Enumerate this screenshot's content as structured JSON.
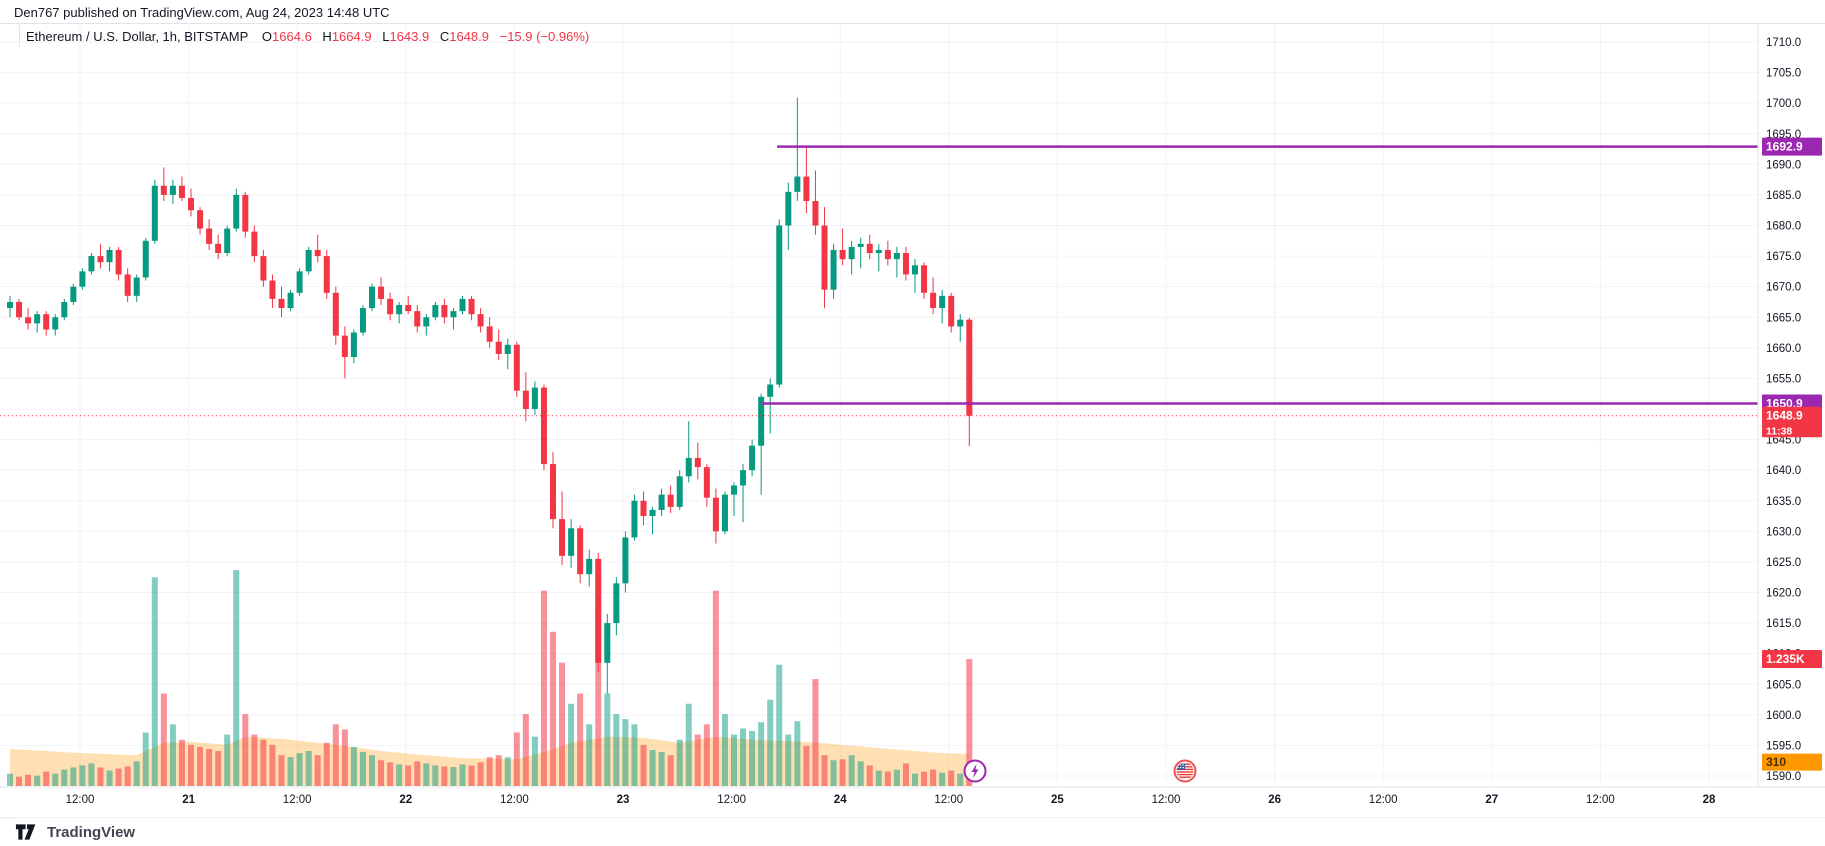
{
  "watermark": "Den767 published on TradingView.com, Aug 24, 2023 14:48 UTC",
  "legend": {
    "symbol": "Ethereum / U.S. Dollar, 1h, BITSTAMP",
    "o_label": "O",
    "o_value": "1664.6",
    "h_label": "H",
    "h_value": "1664.9",
    "l_label": "L",
    "l_value": "1643.9",
    "c_label": "C",
    "c_value": "1648.9",
    "change": "−15.9 (−0.96%)"
  },
  "footer": {
    "brand": "TradingView"
  },
  "colors": {
    "up": "#089981",
    "down": "#f23645",
    "vol_up": "rgba(8,153,129,0.5)",
    "vol_down": "rgba(242,54,69,0.55)",
    "ma_fill": "rgba(255,152,0,0.30)",
    "level": "#9c27b0",
    "last": "#f23645",
    "grid": "#f0f3fa",
    "border": "#e0e3eb",
    "axis_text": "#131722",
    "ma_badge_bg": "#ff9800",
    "ma_badge_text": "#4a3000"
  },
  "chart_data": {
    "type": "candlestick",
    "title": "Ethereum / U.S. Dollar, 1h, BITSTAMP",
    "price_axis": {
      "min": 1590,
      "max": 1710,
      "tick_step": 5
    },
    "price_ticks": [
      "1710.0",
      "1705.0",
      "1700.0",
      "1695.0",
      "1690.0",
      "1685.0",
      "1680.0",
      "1675.0",
      "1670.0",
      "1665.0",
      "1660.0",
      "1655.0",
      "1650.0",
      "1645.0",
      "1640.0",
      "1635.0",
      "1630.0",
      "1625.0",
      "1620.0",
      "1615.0",
      "1610.0",
      "1605.0",
      "1600.0",
      "1595.0",
      "1590.0"
    ],
    "time_ticks": [
      "12:00",
      "21",
      "12:00",
      "22",
      "12:00",
      "23",
      "12:00",
      "24",
      "12:00",
      "25",
      "12:00",
      "26",
      "12:00",
      "27",
      "12:00",
      "28"
    ],
    "levels": [
      {
        "label": "1692.9",
        "price": 1692.9,
        "color": "#9c27b0"
      },
      {
        "label": "1650.9",
        "price": 1650.9,
        "color": "#9c27b0"
      }
    ],
    "last_price": {
      "label": "1648.9",
      "price": 1648.9,
      "countdown": "11:38"
    },
    "volume_badge": {
      "label": "1.235K",
      "value": 1235
    },
    "ma_badge": {
      "label": "310",
      "value": 310
    },
    "markers": [
      {
        "type": "lightning",
        "name": "idea-event-marker"
      },
      {
        "type": "us-flag",
        "name": "economic-event-marker"
      }
    ],
    "volume_ma_points": [
      [
        0,
        360
      ],
      [
        8,
        320
      ],
      [
        14,
        300
      ],
      [
        17,
        420
      ],
      [
        20,
        430
      ],
      [
        24,
        400
      ],
      [
        26,
        480
      ],
      [
        30,
        460
      ],
      [
        36,
        400
      ],
      [
        42,
        330
      ],
      [
        50,
        270
      ],
      [
        56,
        260
      ],
      [
        59,
        330
      ],
      [
        62,
        420
      ],
      [
        66,
        480
      ],
      [
        70,
        470
      ],
      [
        74,
        420
      ],
      [
        78,
        480
      ],
      [
        82,
        450
      ],
      [
        85,
        440
      ],
      [
        88,
        430
      ],
      [
        92,
        400
      ],
      [
        96,
        370
      ],
      [
        100,
        340
      ],
      [
        103,
        320
      ],
      [
        106,
        310
      ]
    ],
    "candles": [
      [
        1666.5,
        1668.5,
        1665.0,
        1667.5,
        120
      ],
      [
        1667.5,
        1668.0,
        1664.5,
        1665.0,
        90
      ],
      [
        1665.0,
        1666.5,
        1663.0,
        1664.0,
        110
      ],
      [
        1664.0,
        1666.0,
        1662.5,
        1665.5,
        100
      ],
      [
        1665.5,
        1666.0,
        1662.0,
        1663.0,
        140
      ],
      [
        1663.0,
        1665.5,
        1662.0,
        1665.0,
        120
      ],
      [
        1665.0,
        1668.0,
        1664.5,
        1667.5,
        160
      ],
      [
        1667.5,
        1670.5,
        1667.0,
        1670.0,
        180
      ],
      [
        1670.0,
        1673.0,
        1669.5,
        1672.5,
        200
      ],
      [
        1672.5,
        1675.5,
        1672.0,
        1675.0,
        220
      ],
      [
        1675.0,
        1677.0,
        1673.0,
        1674.0,
        180
      ],
      [
        1674.0,
        1676.5,
        1672.5,
        1676.0,
        150
      ],
      [
        1676.0,
        1676.5,
        1671.0,
        1672.0,
        170
      ],
      [
        1672.0,
        1673.0,
        1667.5,
        1668.5,
        190
      ],
      [
        1668.5,
        1672.0,
        1667.5,
        1671.5,
        240
      ],
      [
        1671.5,
        1678.0,
        1671.0,
        1677.5,
        520
      ],
      [
        1677.5,
        1687.5,
        1677.0,
        1686.5,
        2030
      ],
      [
        1686.5,
        1689.5,
        1684.0,
        1685.0,
        900
      ],
      [
        1685.0,
        1687.5,
        1683.5,
        1686.5,
        600
      ],
      [
        1686.5,
        1688.0,
        1684.0,
        1684.5,
        450
      ],
      [
        1684.5,
        1686.0,
        1681.5,
        1682.5,
        400
      ],
      [
        1682.5,
        1683.0,
        1678.5,
        1679.5,
        380
      ],
      [
        1679.5,
        1681.0,
        1676.0,
        1677.0,
        360
      ],
      [
        1677.0,
        1678.5,
        1674.5,
        1675.5,
        340
      ],
      [
        1675.5,
        1680.0,
        1675.0,
        1679.5,
        500
      ],
      [
        1679.5,
        1686.0,
        1679.0,
        1685.0,
        2100
      ],
      [
        1685.0,
        1685.5,
        1678.0,
        1679.0,
        700
      ],
      [
        1679.0,
        1680.0,
        1674.0,
        1675.0,
        500
      ],
      [
        1675.0,
        1676.0,
        1670.0,
        1671.0,
        450
      ],
      [
        1671.0,
        1672.0,
        1666.5,
        1668.0,
        400
      ],
      [
        1668.0,
        1670.0,
        1665.0,
        1666.5,
        300
      ],
      [
        1666.5,
        1669.5,
        1666.0,
        1669.0,
        280
      ],
      [
        1669.0,
        1673.0,
        1668.5,
        1672.5,
        320
      ],
      [
        1672.5,
        1676.5,
        1672.0,
        1676.0,
        340
      ],
      [
        1676.0,
        1678.5,
        1674.0,
        1675.0,
        300
      ],
      [
        1675.0,
        1676.0,
        1668.0,
        1669.0,
        420
      ],
      [
        1669.0,
        1670.0,
        1660.5,
        1662.0,
        600
      ],
      [
        1662.0,
        1663.5,
        1655.0,
        1658.5,
        550
      ],
      [
        1658.5,
        1663.0,
        1657.5,
        1662.5,
        380
      ],
      [
        1662.5,
        1667.0,
        1662.0,
        1666.5,
        330
      ],
      [
        1666.5,
        1670.5,
        1666.0,
        1670.0,
        300
      ],
      [
        1670.0,
        1671.5,
        1667.0,
        1668.0,
        250
      ],
      [
        1668.0,
        1669.0,
        1664.5,
        1665.5,
        230
      ],
      [
        1665.5,
        1667.5,
        1664.0,
        1667.0,
        210
      ],
      [
        1667.0,
        1668.5,
        1665.5,
        1666.0,
        200
      ],
      [
        1666.0,
        1667.0,
        1662.5,
        1663.5,
        240
      ],
      [
        1663.5,
        1665.5,
        1662.0,
        1665.0,
        220
      ],
      [
        1665.0,
        1667.5,
        1664.5,
        1667.0,
        200
      ],
      [
        1667.0,
        1668.0,
        1664.0,
        1665.0,
        190
      ],
      [
        1665.0,
        1666.5,
        1663.0,
        1666.0,
        185
      ],
      [
        1666.0,
        1668.5,
        1665.5,
        1668.0,
        210
      ],
      [
        1668.0,
        1668.5,
        1664.5,
        1665.5,
        200
      ],
      [
        1665.5,
        1666.5,
        1662.5,
        1663.5,
        230
      ],
      [
        1663.5,
        1665.0,
        1660.0,
        1661.0,
        280
      ],
      [
        1661.0,
        1663.0,
        1658.0,
        1659.0,
        300
      ],
      [
        1659.0,
        1661.5,
        1656.5,
        1660.5,
        280
      ],
      [
        1660.5,
        1661.0,
        1652.0,
        1653.0,
        520
      ],
      [
        1653.0,
        1656.0,
        1648.0,
        1650.0,
        700
      ],
      [
        1650.0,
        1654.5,
        1649.0,
        1653.5,
        480
      ],
      [
        1653.5,
        1654.0,
        1640.0,
        1641.0,
        1900
      ],
      [
        1641.0,
        1643.0,
        1630.5,
        1632.0,
        1500
      ],
      [
        1632.0,
        1636.5,
        1624.5,
        1626.0,
        1200
      ],
      [
        1626.0,
        1632.0,
        1624.0,
        1630.5,
        800
      ],
      [
        1630.5,
        1631.0,
        1621.5,
        1623.0,
        900
      ],
      [
        1623.0,
        1627.0,
        1621.0,
        1625.5,
        600
      ],
      [
        1625.5,
        1626.5,
        1607.0,
        1608.5,
        1730
      ],
      [
        1608.5,
        1616.5,
        1603.5,
        1615.0,
        900
      ],
      [
        1615.0,
        1622.5,
        1613.0,
        1621.5,
        700
      ],
      [
        1621.5,
        1630.0,
        1620.0,
        1629.0,
        650
      ],
      [
        1629.0,
        1636.0,
        1628.5,
        1635.0,
        600
      ],
      [
        1635.0,
        1636.5,
        1631.0,
        1632.5,
        400
      ],
      [
        1632.5,
        1634.0,
        1629.5,
        1633.5,
        350
      ],
      [
        1633.5,
        1637.0,
        1632.5,
        1636.0,
        330
      ],
      [
        1636.0,
        1637.5,
        1633.0,
        1634.0,
        300
      ],
      [
        1634.0,
        1640.0,
        1633.5,
        1639.0,
        450
      ],
      [
        1639.0,
        1648.0,
        1638.0,
        1642.0,
        800
      ],
      [
        1642.0,
        1644.5,
        1638.5,
        1640.5,
        500
      ],
      [
        1640.5,
        1641.0,
        1634.0,
        1635.5,
        600
      ],
      [
        1635.5,
        1637.0,
        1628.0,
        1630.0,
        1900
      ],
      [
        1630.0,
        1636.5,
        1629.5,
        1636.0,
        700
      ],
      [
        1636.0,
        1638.0,
        1632.5,
        1637.5,
        500
      ],
      [
        1637.5,
        1641.0,
        1631.5,
        1640.0,
        560
      ],
      [
        1640.0,
        1645.0,
        1639.0,
        1644.0,
        535
      ],
      [
        1644.0,
        1652.5,
        1636.0,
        1652.0,
        620
      ],
      [
        1652.0,
        1655.0,
        1646.0,
        1654.0,
        840
      ],
      [
        1654.0,
        1681.0,
        1653.5,
        1680.0,
        1180
      ],
      [
        1680.0,
        1687.0,
        1676.0,
        1685.5,
        500
      ],
      [
        1685.5,
        1700.9,
        1684.0,
        1688.0,
        630
      ],
      [
        1688.0,
        1692.9,
        1682.0,
        1684.0,
        390
      ],
      [
        1684.0,
        1689.0,
        1678.5,
        1680.0,
        1040
      ],
      [
        1680.0,
        1683.0,
        1666.5,
        1669.5,
        300
      ],
      [
        1669.5,
        1677.0,
        1668.0,
        1676.0,
        250
      ],
      [
        1676.0,
        1679.5,
        1673.5,
        1674.5,
        260
      ],
      [
        1674.5,
        1677.5,
        1672.0,
        1676.5,
        300
      ],
      [
        1676.5,
        1678.0,
        1673.0,
        1677.0,
        240
      ],
      [
        1677.0,
        1678.5,
        1674.5,
        1675.5,
        200
      ],
      [
        1675.5,
        1677.0,
        1672.5,
        1676.0,
        150
      ],
      [
        1676.0,
        1677.5,
        1673.5,
        1674.5,
        140
      ],
      [
        1674.5,
        1676.5,
        1671.5,
        1675.5,
        160
      ],
      [
        1675.5,
        1676.5,
        1671.0,
        1672.0,
        220
      ],
      [
        1672.0,
        1674.5,
        1669.0,
        1673.5,
        120
      ],
      [
        1673.5,
        1674.0,
        1668.0,
        1669.0,
        140
      ],
      [
        1669.0,
        1671.5,
        1665.5,
        1666.5,
        160
      ],
      [
        1666.5,
        1669.5,
        1664.0,
        1668.5,
        130
      ],
      [
        1668.5,
        1669.0,
        1662.5,
        1663.5,
        150
      ],
      [
        1663.5,
        1665.5,
        1661.0,
        1664.6,
        120
      ],
      [
        1664.6,
        1664.9,
        1643.9,
        1648.9,
        1235
      ]
    ]
  }
}
